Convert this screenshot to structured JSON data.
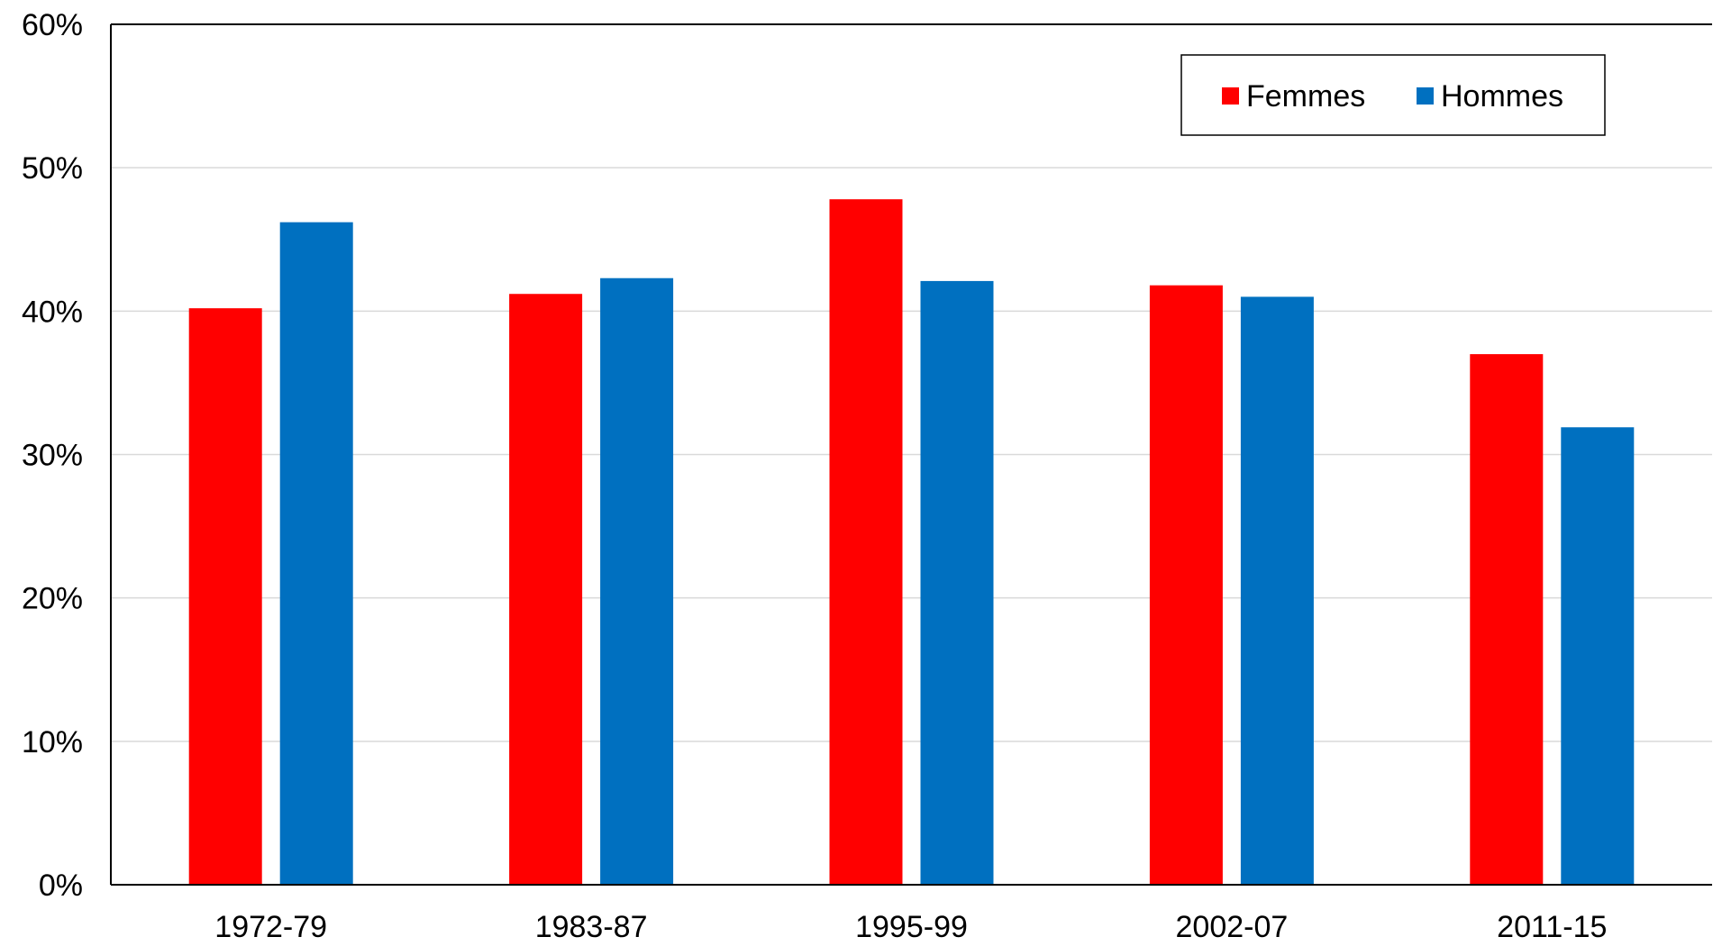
{
  "chart_data": {
    "type": "bar",
    "categories": [
      "1972-79",
      "1983-87",
      "1995-99",
      "2002-07",
      "2011-15"
    ],
    "series": [
      {
        "name": "Femmes",
        "color": "#ff0000",
        "values": [
          40.2,
          41.2,
          47.8,
          41.8,
          37.0
        ]
      },
      {
        "name": "Hommes",
        "color": "#0070c0",
        "values": [
          46.2,
          42.3,
          42.1,
          41.0,
          31.9
        ]
      }
    ],
    "ylim": [
      0,
      60
    ],
    "yticks": [
      0,
      10,
      20,
      30,
      40,
      50,
      60
    ],
    "ytick_labels": [
      "0%",
      "10%",
      "20%",
      "30%",
      "40%",
      "50%",
      "60%"
    ],
    "grid": "horizontal",
    "legend_position": "top-right",
    "title": "",
    "xlabel": "",
    "ylabel": ""
  }
}
